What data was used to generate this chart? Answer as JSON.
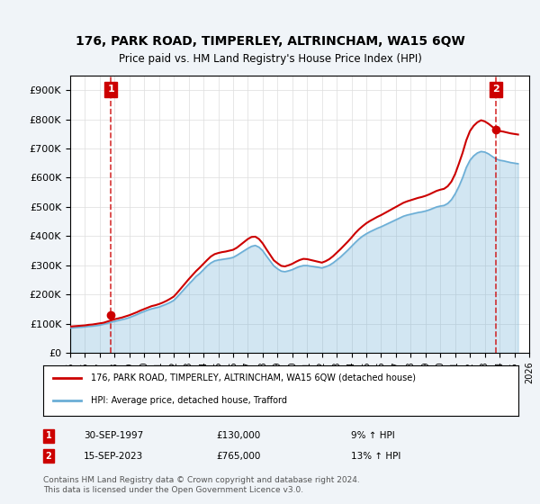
{
  "title": "176, PARK ROAD, TIMPERLEY, ALTRINCHAM, WA15 6QW",
  "subtitle": "Price paid vs. HM Land Registry's House Price Index (HPI)",
  "ylabel": "",
  "ylim": [
    0,
    950000
  ],
  "yticks": [
    0,
    100000,
    200000,
    300000,
    400000,
    500000,
    600000,
    700000,
    800000,
    900000
  ],
  "ytick_labels": [
    "£0",
    "£100K",
    "£200K",
    "£300K",
    "£400K",
    "£500K",
    "£600K",
    "£700K",
    "£800K",
    "£900K"
  ],
  "hpi_color": "#6baed6",
  "price_color": "#cc0000",
  "annotation_box_color": "#cc0000",
  "dashed_line_color": "#cc0000",
  "background_color": "#f0f4f8",
  "plot_bg_color": "#ffffff",
  "legend_box_color": "#000000",
  "transaction1_date": "30-SEP-1997",
  "transaction1_price": 130000,
  "transaction1_hpi_pct": "9%",
  "transaction2_date": "15-SEP-2023",
  "transaction2_price": 765000,
  "transaction2_hpi_pct": "13%",
  "legend_label1": "176, PARK ROAD, TIMPERLEY, ALTRINCHAM, WA15 6QW (detached house)",
  "legend_label2": "HPI: Average price, detached house, Trafford",
  "footer": "Contains HM Land Registry data © Crown copyright and database right 2024.\nThis data is licensed under the Open Government Licence v3.0.",
  "hpi_data_x": [
    1995,
    1995.25,
    1995.5,
    1995.75,
    1996,
    1996.25,
    1996.5,
    1996.75,
    1997,
    1997.25,
    1997.5,
    1997.75,
    1998,
    1998.25,
    1998.5,
    1998.75,
    1999,
    1999.25,
    1999.5,
    1999.75,
    2000,
    2000.25,
    2000.5,
    2000.75,
    2001,
    2001.25,
    2001.5,
    2001.75,
    2002,
    2002.25,
    2002.5,
    2002.75,
    2003,
    2003.25,
    2003.5,
    2003.75,
    2004,
    2004.25,
    2004.5,
    2004.75,
    2005,
    2005.25,
    2005.5,
    2005.75,
    2006,
    2006.25,
    2006.5,
    2006.75,
    2007,
    2007.25,
    2007.5,
    2007.75,
    2008,
    2008.25,
    2008.5,
    2008.75,
    2009,
    2009.25,
    2009.5,
    2009.75,
    2010,
    2010.25,
    2010.5,
    2010.75,
    2011,
    2011.25,
    2011.5,
    2011.75,
    2012,
    2012.25,
    2012.5,
    2012.75,
    2013,
    2013.25,
    2013.5,
    2013.75,
    2014,
    2014.25,
    2014.5,
    2014.75,
    2015,
    2015.25,
    2015.5,
    2015.75,
    2016,
    2016.25,
    2016.5,
    2016.75,
    2017,
    2017.25,
    2017.5,
    2017.75,
    2018,
    2018.25,
    2018.5,
    2018.75,
    2019,
    2019.25,
    2019.5,
    2019.75,
    2020,
    2020.25,
    2020.5,
    2020.75,
    2021,
    2021.25,
    2021.5,
    2021.75,
    2022,
    2022.25,
    2022.5,
    2022.75,
    2023,
    2023.25,
    2023.5,
    2023.75,
    2024,
    2024.25,
    2024.5,
    2024.75,
    2025,
    2025.25
  ],
  "hpi_data_y": [
    85000,
    86000,
    87000,
    88000,
    89000,
    90500,
    91500,
    93000,
    95000,
    98000,
    101000,
    105000,
    108000,
    111000,
    114000,
    117000,
    121000,
    126000,
    131000,
    137000,
    142000,
    147000,
    151000,
    154000,
    157000,
    162000,
    167000,
    173000,
    180000,
    193000,
    207000,
    221000,
    235000,
    248000,
    262000,
    272000,
    285000,
    298000,
    308000,
    315000,
    318000,
    320000,
    322000,
    324000,
    327000,
    334000,
    342000,
    350000,
    358000,
    365000,
    368000,
    362000,
    350000,
    332000,
    315000,
    298000,
    288000,
    280000,
    278000,
    281000,
    285000,
    291000,
    296000,
    299000,
    299000,
    297000,
    295000,
    293000,
    291000,
    295000,
    300000,
    308000,
    318000,
    328000,
    340000,
    352000,
    365000,
    378000,
    390000,
    400000,
    408000,
    415000,
    421000,
    427000,
    432000,
    438000,
    444000,
    450000,
    456000,
    462000,
    468000,
    472000,
    475000,
    478000,
    481000,
    483000,
    486000,
    490000,
    495000,
    500000,
    503000,
    505000,
    512000,
    525000,
    545000,
    570000,
    600000,
    635000,
    660000,
    675000,
    685000,
    690000,
    688000,
    682000,
    673000,
    665000,
    660000,
    658000,
    655000,
    652000,
    650000,
    648000
  ],
  "price_data_x": [
    1995,
    1995.25,
    1995.5,
    1995.75,
    1996,
    1996.25,
    1996.5,
    1996.75,
    1997,
    1997.25,
    1997.5,
    1997.75,
    1998,
    1998.25,
    1998.5,
    1998.75,
    1999,
    1999.25,
    1999.5,
    1999.75,
    2000,
    2000.25,
    2000.5,
    2000.75,
    2001,
    2001.25,
    2001.5,
    2001.75,
    2002,
    2002.25,
    2002.5,
    2002.75,
    2003,
    2003.25,
    2003.5,
    2003.75,
    2004,
    2004.25,
    2004.5,
    2004.75,
    2005,
    2005.25,
    2005.5,
    2005.75,
    2006,
    2006.25,
    2006.5,
    2006.75,
    2007,
    2007.25,
    2007.5,
    2007.75,
    2008,
    2008.25,
    2008.5,
    2008.75,
    2009,
    2009.25,
    2009.5,
    2009.75,
    2010,
    2010.25,
    2010.5,
    2010.75,
    2011,
    2011.25,
    2011.5,
    2011.75,
    2012,
    2012.25,
    2012.5,
    2012.75,
    2013,
    2013.25,
    2013.5,
    2013.75,
    2014,
    2014.25,
    2014.5,
    2014.75,
    2015,
    2015.25,
    2015.5,
    2015.75,
    2016,
    2016.25,
    2016.5,
    2016.75,
    2017,
    2017.25,
    2017.5,
    2017.75,
    2018,
    2018.25,
    2018.5,
    2018.75,
    2019,
    2019.25,
    2019.5,
    2019.75,
    2020,
    2020.25,
    2020.5,
    2020.75,
    2021,
    2021.25,
    2021.5,
    2021.75,
    2022,
    2022.25,
    2022.5,
    2022.75,
    2023,
    2023.25,
    2023.5,
    2023.75,
    2024,
    2024.25,
    2024.5,
    2024.75,
    2025,
    2025.25
  ],
  "price_data_y": [
    90000,
    91000,
    92000,
    93000,
    94000,
    96000,
    97000,
    99000,
    101000,
    103000,
    107000,
    111000,
    115000,
    118000,
    121000,
    125000,
    129000,
    134000,
    139000,
    145000,
    150000,
    155000,
    160000,
    163000,
    167000,
    172000,
    178000,
    185000,
    193000,
    207000,
    222000,
    237000,
    252000,
    266000,
    280000,
    292000,
    305000,
    318000,
    330000,
    338000,
    342000,
    345000,
    347000,
    350000,
    353000,
    360000,
    370000,
    380000,
    390000,
    397000,
    398000,
    390000,
    375000,
    355000,
    336000,
    317000,
    307000,
    298000,
    296000,
    300000,
    305000,
    312000,
    318000,
    322000,
    321000,
    318000,
    315000,
    312000,
    309000,
    314000,
    321000,
    331000,
    343000,
    355000,
    368000,
    381000,
    395000,
    410000,
    423000,
    434000,
    444000,
    452000,
    459000,
    466000,
    472000,
    479000,
    486000,
    493000,
    500000,
    507000,
    514000,
    519000,
    523000,
    527000,
    531000,
    534000,
    538000,
    543000,
    549000,
    555000,
    559000,
    562000,
    571000,
    587000,
    613000,
    648000,
    685000,
    728000,
    760000,
    778000,
    790000,
    797000,
    793000,
    785000,
    775000,
    765000,
    760000,
    758000,
    755000,
    752000,
    750000,
    748000
  ],
  "transaction1_x": 1997.75,
  "transaction2_x": 2023.75,
  "xlim_left": 1995,
  "xlim_right": 2026,
  "xticks": [
    1995,
    1996,
    1997,
    1998,
    1999,
    2000,
    2001,
    2002,
    2003,
    2004,
    2005,
    2006,
    2007,
    2008,
    2009,
    2010,
    2011,
    2012,
    2013,
    2014,
    2015,
    2016,
    2017,
    2018,
    2019,
    2020,
    2021,
    2022,
    2023,
    2024,
    2025,
    2026
  ]
}
